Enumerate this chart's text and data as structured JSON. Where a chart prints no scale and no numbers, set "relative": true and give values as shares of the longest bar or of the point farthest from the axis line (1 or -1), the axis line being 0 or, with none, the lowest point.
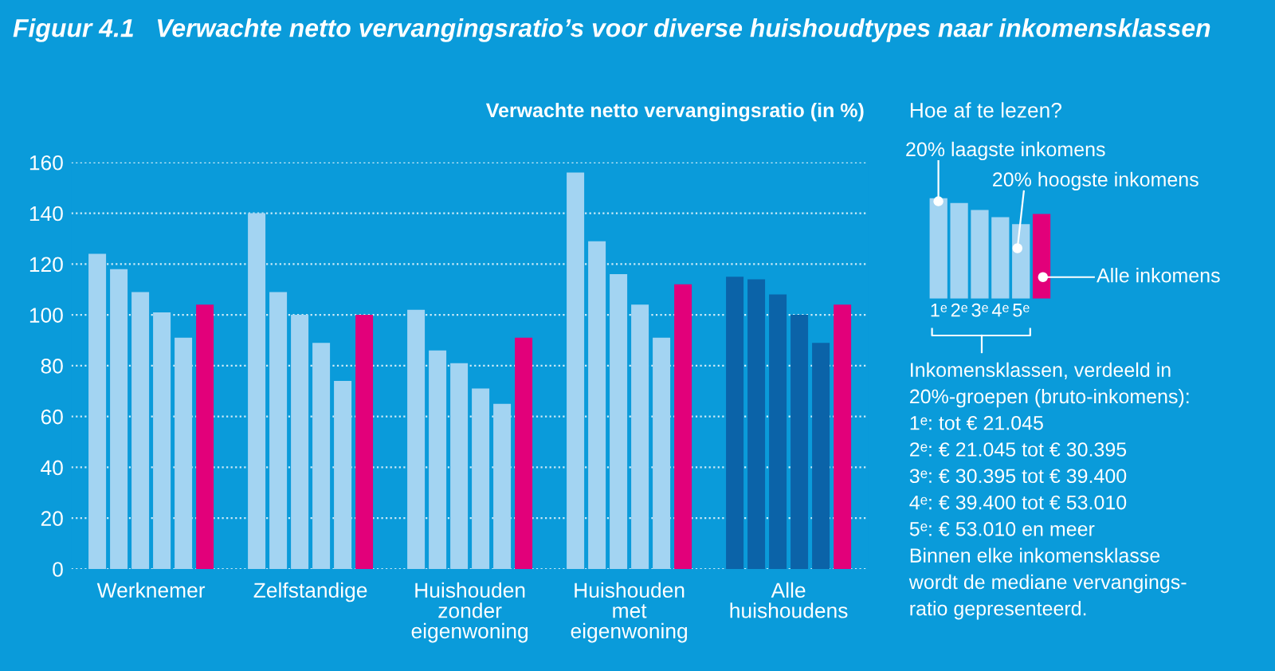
{
  "chart_data": [
    {
      "type": "bar",
      "title": "Figuur 4.1   Verwachte netto vervangingsratio’s voor diverse huishoudtypes naar inkomensklassen",
      "ylabel": "Verwachte netto vervangingsratio (in %)",
      "categories": [
        "Werknemer",
        "Zelfstandige",
        "Huishouden\nzonder\neigenwoning",
        "Huishouden\nmet\neigenwoning",
        "Alle\nhuishoudens"
      ],
      "series": [
        {
          "colors": [
            "#a3d4f2",
            "#a3d4f2",
            "#a3d4f2",
            "#a3d4f2",
            "#0b63a8"
          ],
          "values": [
            124,
            140,
            102,
            156,
            115
          ]
        },
        {
          "colors": [
            "#a3d4f2",
            "#a3d4f2",
            "#a3d4f2",
            "#a3d4f2",
            "#0b63a8"
          ],
          "values": [
            118,
            109,
            86,
            129,
            114
          ]
        },
        {
          "colors": [
            "#a3d4f2",
            "#a3d4f2",
            "#a3d4f2",
            "#a3d4f2",
            "#0b63a8"
          ],
          "values": [
            109,
            100,
            81,
            116,
            108
          ]
        },
        {
          "colors": [
            "#a3d4f2",
            "#a3d4f2",
            "#a3d4f2",
            "#a3d4f2",
            "#0b63a8"
          ],
          "values": [
            101,
            89,
            71,
            104,
            100
          ]
        },
        {
          "colors": [
            "#a3d4f2",
            "#a3d4f2",
            "#a3d4f2",
            "#a3d4f2",
            "#0b63a8"
          ],
          "values": [
            91,
            74,
            65,
            91,
            89
          ]
        },
        {
          "color": "#e2007a",
          "values": [
            104,
            100,
            91,
            112,
            104
          ]
        }
      ],
      "ylim": [
        0,
        160
      ],
      "yticks": [
        0,
        20,
        40,
        60,
        80,
        100,
        120,
        140,
        160
      ],
      "grid": "y"
    },
    {
      "type": "bar",
      "relative": true,
      "title": "Hoe af te lezen?",
      "categories": [
        "1ᵉ",
        "2ᵉ",
        "3ᵉ",
        "4ᵉ",
        "5ᵉ",
        null
      ],
      "values": [
        1,
        0.95,
        0.88,
        0.81,
        0.74,
        0.84
      ],
      "colors": [
        "#a3d4f2",
        "#a3d4f2",
        "#a3d4f2",
        "#a3d4f2",
        "#a3d4f2",
        "#e2007a"
      ],
      "annotations": [
        "20% laagste inkomens",
        "20% hoogste inkomens",
        "Alle inkomens",
        "Inkomensklassen, verdeeld in\n20%-groepen (bruto-inkomens):\n1ᵉ: tot € 21.045\n2ᵉ: € 21.045 tot € 30.395\n3ᵉ: € 30.395 tot € 39.400\n4ᵉ: € 39.400 tot € 53.010\n5ᵉ: € 53.010 en meer\nBinnen elke inkomensklasse\nwordt de mediane vervangings-\nratio gepresenteerd."
      ]
    }
  ]
}
